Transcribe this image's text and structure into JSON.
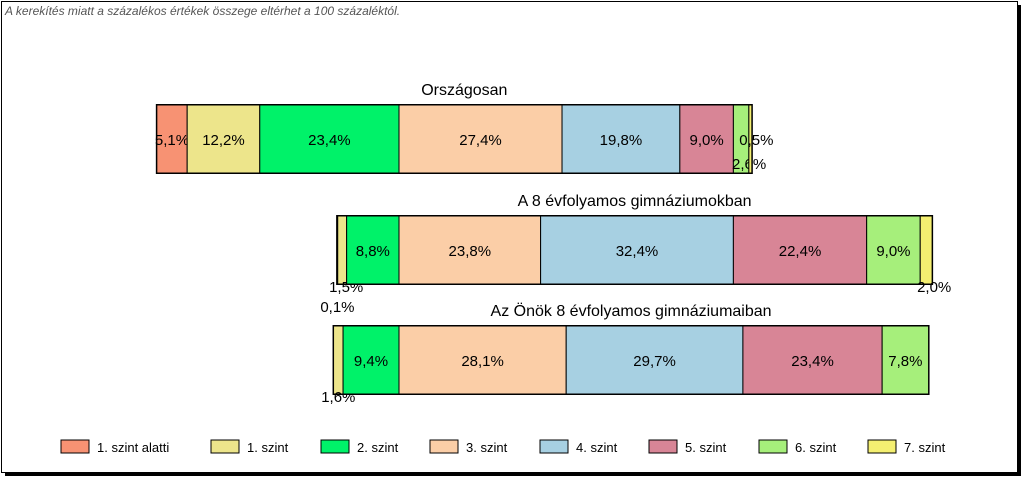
{
  "note": "A kerekítés miatt a  százalékos értékek összege eltérhet a 100 százaléktól.",
  "colors": {
    "1. szint alatti": "#f79273",
    "1. szint": "#ede58b",
    "2. szint": "#00f269",
    "3. szint": "#fbcea7",
    "4. szint": "#a7d0e2",
    "5. szint": "#d88596",
    "6. szint": "#a6ef7b",
    "7. szint": "#f4ef71"
  },
  "chart_data": {
    "type": "bar",
    "orientation": "horizontal-stacked",
    "categories": [
      "1. szint alatti",
      "1. szint",
      "2. szint",
      "3. szint",
      "4. szint",
      "5. szint",
      "6. szint",
      "7. szint"
    ],
    "legend": "bottom",
    "bars": [
      {
        "title": "Országosan",
        "segments": [
          {
            "level": "1. szint alatti",
            "value": 5.1,
            "label": "5,1%"
          },
          {
            "level": "1. szint",
            "value": 12.2,
            "label": "12,2%"
          },
          {
            "level": "2. szint",
            "value": 23.4,
            "label": "23,4%"
          },
          {
            "level": "3. szint",
            "value": 27.4,
            "label": "27,4%"
          },
          {
            "level": "4. szint",
            "value": 19.8,
            "label": "19,8%"
          },
          {
            "level": "5. szint",
            "value": 9.0,
            "label": "9,0%"
          },
          {
            "level": "6. szint",
            "value": 2.6,
            "label": "2,6%"
          },
          {
            "level": "7. szint",
            "value": 0.5,
            "label": "0,5%"
          }
        ]
      },
      {
        "title": "A 8 évfolyamos gimnáziumokban",
        "segments": [
          {
            "level": "1. szint alatti",
            "value": 0.1,
            "label": "0,1%"
          },
          {
            "level": "1. szint",
            "value": 1.5,
            "label": "1,5%"
          },
          {
            "level": "2. szint",
            "value": 8.8,
            "label": "8,8%"
          },
          {
            "level": "3. szint",
            "value": 23.8,
            "label": "23,8%"
          },
          {
            "level": "4. szint",
            "value": 32.4,
            "label": "32,4%"
          },
          {
            "level": "5. szint",
            "value": 22.4,
            "label": "22,4%"
          },
          {
            "level": "6. szint",
            "value": 9.0,
            "label": "9,0%"
          },
          {
            "level": "7. szint",
            "value": 2.0,
            "label": "2,0%"
          }
        ]
      },
      {
        "title": "Az Önök 8 évfolyamos gimnáziumaiban",
        "segments": [
          {
            "level": "1. szint",
            "value": 1.6,
            "label": "1,6%"
          },
          {
            "level": "2. szint",
            "value": 9.4,
            "label": "9,4%"
          },
          {
            "level": "3. szint",
            "value": 28.1,
            "label": "28,1%"
          },
          {
            "level": "4. szint",
            "value": 29.7,
            "label": "29,7%"
          },
          {
            "level": "5. szint",
            "value": 23.4,
            "label": "23,4%"
          },
          {
            "level": "6. szint",
            "value": 7.8,
            "label": "7,8%"
          }
        ]
      }
    ]
  }
}
